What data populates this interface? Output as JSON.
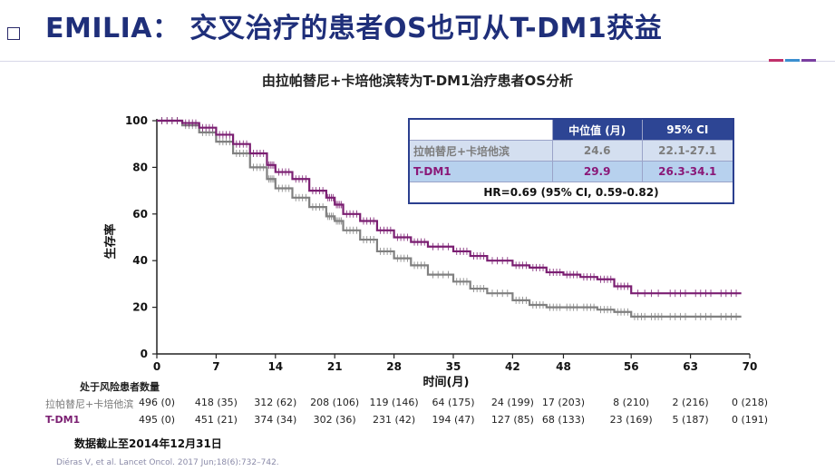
{
  "header": {
    "title": "EMILIA： 交叉治疗的患者OS也可从T-DM1获益",
    "subtitle": "由拉帕替尼+卡培他滨转为T-DM1治疗患者OS分析"
  },
  "hr_table": {
    "col_median": "中位值 (月)",
    "col_ci": "95% CI",
    "rows": [
      {
        "name": "拉帕替尼+卡培他滨",
        "median": "24.6",
        "ci": "22.1-27.1"
      },
      {
        "name": "T-DM1",
        "median": "29.9",
        "ci": "26.3-34.1"
      }
    ],
    "hr_text": "HR=0.69 (95% CI, 0.59-0.82)"
  },
  "risk_table": {
    "title": "处于风险患者数量",
    "rows": [
      {
        "label": "拉帕替尼+卡培他滨",
        "color": "#7a7a7a",
        "values": [
          "496 (0)",
          "418 (35)",
          "312 (62)",
          "208 (106)",
          "119 (146)",
          "64 (175)",
          "24 (199)",
          "17 (203)",
          "8 (210)",
          "2 (216)",
          "0 (218)"
        ]
      },
      {
        "label": "T-DM1",
        "color": "#7b1f72",
        "values": [
          "495 (0)",
          "451 (21)",
          "374 (34)",
          "302 (36)",
          "231 (42)",
          "194 (47)",
          "127 (85)",
          "68 (133)",
          "23 (169)",
          "5 (187)",
          "0 (191)"
        ]
      }
    ]
  },
  "footnote": {
    "cutoff": "数据截止至2014年12月31日",
    "reference": "Diéras V, et al. Lancet Oncol. 2017 Jun;18(6):732–742."
  },
  "colors": {
    "title": "#1f2f7a",
    "tdm1": "#7b1f72",
    "control": "#808080",
    "accent": [
      "#c0306a",
      "#3b8fd0",
      "#7a3fa0"
    ]
  },
  "chart_data": {
    "type": "line",
    "title": "",
    "xlabel": "时间(月)",
    "ylabel": "生存率",
    "xlim": [
      0,
      70
    ],
    "ylim": [
      0,
      100
    ],
    "x_ticks": [
      0,
      7,
      14,
      21,
      28,
      35,
      42,
      48,
      56,
      63,
      70
    ],
    "y_ticks": [
      0,
      20,
      40,
      60,
      80,
      100
    ],
    "series": [
      {
        "name": "T-DM1",
        "color": "#7b1f72",
        "x": [
          0,
          3,
          5,
          7,
          9,
          11,
          13,
          14,
          16,
          18,
          20,
          21,
          22,
          24,
          26,
          28,
          30,
          32,
          35,
          37,
          39,
          42,
          44,
          46,
          48,
          50,
          52,
          54,
          56,
          60,
          63,
          66,
          69
        ],
        "y": [
          100,
          99,
          97,
          94,
          90,
          86,
          81,
          78,
          75,
          70,
          67,
          64,
          60,
          57,
          53,
          50,
          48,
          46,
          44,
          42,
          40,
          38,
          37,
          35,
          34,
          33,
          32,
          29,
          26,
          26,
          26,
          26,
          26
        ]
      },
      {
        "name": "拉帕替尼+卡培他滨",
        "color": "#808080",
        "x": [
          0,
          3,
          5,
          7,
          9,
          11,
          13,
          14,
          16,
          18,
          20,
          21,
          22,
          24,
          26,
          28,
          30,
          32,
          35,
          37,
          39,
          42,
          44,
          46,
          48,
          50,
          52,
          54,
          56,
          58,
          60,
          63,
          66,
          69
        ],
        "y": [
          100,
          98,
          95,
          91,
          86,
          80,
          75,
          71,
          67,
          63,
          59,
          57,
          53,
          49,
          44,
          41,
          38,
          34,
          31,
          28,
          26,
          23,
          21,
          20,
          20,
          20,
          19,
          18,
          16,
          16,
          16,
          16,
          16,
          16
        ]
      }
    ]
  }
}
